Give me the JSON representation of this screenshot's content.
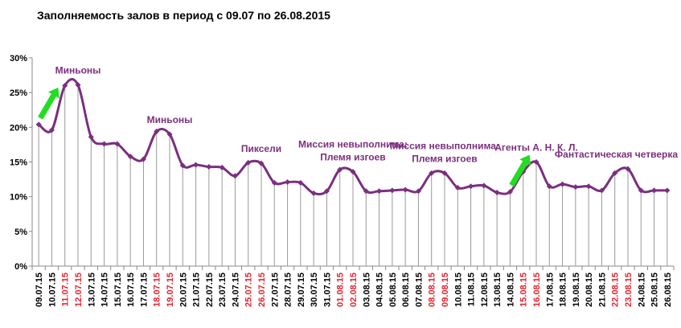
{
  "chart_data": {
    "type": "line",
    "title": "Заполняемость залов в период с 09.07 по 26.08.2015",
    "xlabel": "",
    "ylabel": "",
    "ylim": [
      0,
      30
    ],
    "yticks": [
      "0%",
      "5%",
      "10%",
      "15%",
      "20%",
      "25%",
      "30%"
    ],
    "y_unit": "%",
    "grid": "vertical drop lines to each point",
    "legend": "none",
    "line_color": "#7B2F7E",
    "weekend_label_color": "#E8212B",
    "weekday_label_color": "#000000",
    "arrow_color": "#22DD22",
    "x": [
      "09.07.15",
      "10.07.15",
      "11.07.15",
      "12.07.15",
      "13.07.15",
      "14.07.15",
      "15.07.15",
      "16.07.15",
      "17.07.15",
      "18.07.15",
      "19.07.15",
      "20.07.15",
      "21.07.15",
      "22.07.15",
      "23.07.15",
      "24.07.15",
      "25.07.15",
      "26.07.15",
      "27.07.15",
      "28.07.15",
      "29.07.15",
      "30.07.15",
      "31.07.15",
      "01.08.15",
      "02.08.15",
      "03.08.15",
      "04.08.15",
      "05.08.15",
      "06.08.15",
      "07.08.15",
      "08.08.15",
      "09.08.15",
      "10.08.15",
      "11.08.15",
      "12.08.15",
      "13.08.15",
      "14.08.15",
      "15.08.15",
      "16.08.15",
      "17.08.15",
      "18.08.15",
      "19.08.15",
      "20.08.15",
      "21.08.15",
      "22.08.15",
      "23.08.15",
      "24.08.15",
      "25.08.15",
      "26.08.15"
    ],
    "weekend": [
      false,
      false,
      true,
      true,
      false,
      false,
      false,
      false,
      false,
      true,
      true,
      false,
      false,
      false,
      false,
      false,
      true,
      true,
      false,
      false,
      false,
      false,
      false,
      true,
      true,
      false,
      false,
      false,
      false,
      false,
      true,
      true,
      false,
      false,
      false,
      false,
      false,
      true,
      true,
      false,
      false,
      false,
      false,
      false,
      true,
      true,
      false,
      false,
      false
    ],
    "series": [
      {
        "values": [
          20.4,
          19.6,
          26.0,
          26.1,
          18.6,
          17.6,
          17.6,
          15.8,
          15.4,
          19.4,
          19.0,
          14.5,
          14.6,
          14.3,
          14.2,
          13.0,
          14.9,
          14.8,
          12.0,
          12.1,
          12.0,
          10.5,
          10.8,
          13.9,
          13.6,
          10.8,
          10.8,
          10.9,
          11.0,
          10.8,
          13.4,
          13.4,
          11.3,
          11.5,
          11.6,
          10.6,
          10.7,
          13.6,
          15.0,
          11.5,
          11.8,
          11.4,
          11.5,
          10.9,
          13.4,
          14.0,
          10.9,
          10.9,
          10.9
        ]
      }
    ],
    "annotations": [
      {
        "index": 3,
        "lines": [
          "Миньоны"
        ]
      },
      {
        "index": 10,
        "lines": [
          "Миньоны"
        ]
      },
      {
        "index": 17,
        "lines": [
          "Пиксели"
        ]
      },
      {
        "index": 24,
        "lines": [
          "Миссия невыполнима:",
          "Племя изгоев"
        ]
      },
      {
        "index": 31,
        "lines": [
          "Миссия невыполнима:",
          "Племя изгоев"
        ]
      },
      {
        "index": 38,
        "lines": [
          "Агенты А. Н. К. Л."
        ]
      },
      {
        "index": 45,
        "lines": [
          "Фантастическая четверка"
        ]
      }
    ],
    "arrows": [
      {
        "from_index": 0,
        "to_index": 1
      },
      {
        "from_index": 36,
        "to_index": 37
      }
    ]
  }
}
